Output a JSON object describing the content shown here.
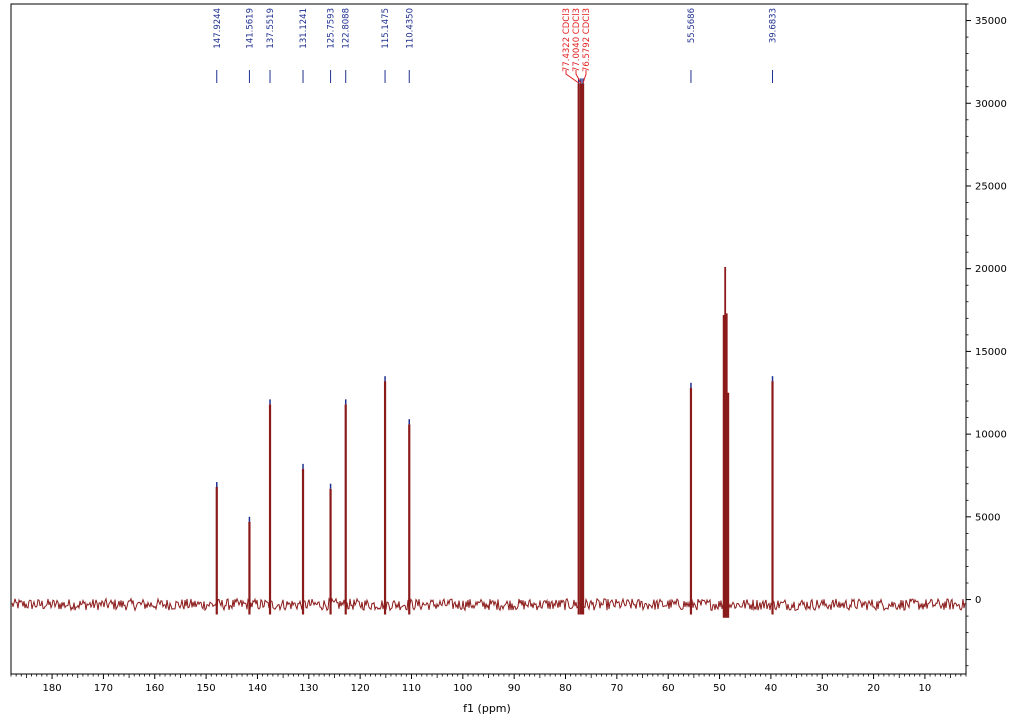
{
  "chart_data": {
    "type": "line",
    "title": "",
    "xlabel": "f1 (ppm)",
    "ylabel": "",
    "xlim": [
      188,
      2
    ],
    "ylim": [
      -4500,
      36000
    ],
    "x_reversed": true,
    "grid": false,
    "legend": "none",
    "colors": {
      "spectrum": "#8b1a1a",
      "peak_label": "#1f2f8f",
      "solvent_label": "#e02020",
      "axis": "#000000"
    },
    "x_ticks": [
      {
        "value": 180,
        "label": "180"
      },
      {
        "value": 170,
        "label": "170"
      },
      {
        "value": 160,
        "label": "160"
      },
      {
        "value": 150,
        "label": "150"
      },
      {
        "value": 140,
        "label": "140"
      },
      {
        "value": 130,
        "label": "130"
      },
      {
        "value": 120,
        "label": "120"
      },
      {
        "value": 110,
        "label": "110"
      },
      {
        "value": 100,
        "label": "100"
      },
      {
        "value": 90,
        "label": "90"
      },
      {
        "value": 80,
        "label": "80"
      },
      {
        "value": 70,
        "label": "70"
      },
      {
        "value": 60,
        "label": "60"
      },
      {
        "value": 50,
        "label": "50"
      },
      {
        "value": 40,
        "label": "40"
      },
      {
        "value": 30,
        "label": "30"
      },
      {
        "value": 20,
        "label": "20"
      },
      {
        "value": 10,
        "label": "10"
      }
    ],
    "y_ticks": [
      {
        "value": 35000,
        "label": "35000"
      },
      {
        "value": 30000,
        "label": "30000"
      },
      {
        "value": 25000,
        "label": "25000"
      },
      {
        "value": 20000,
        "label": "20000"
      },
      {
        "value": 15000,
        "label": "15000"
      },
      {
        "value": 10000,
        "label": "10000"
      },
      {
        "value": 5000,
        "label": "5000"
      },
      {
        "value": 0,
        "label": "0"
      }
    ],
    "peaks": [
      {
        "ppm": 147.9244,
        "intensity": 6800,
        "label": "147.9244"
      },
      {
        "ppm": 141.5619,
        "intensity": 4700,
        "label": "141.5619"
      },
      {
        "ppm": 137.5519,
        "intensity": 11800,
        "label": "137.5519"
      },
      {
        "ppm": 131.1241,
        "intensity": 7900,
        "label": "131.1241"
      },
      {
        "ppm": 125.7593,
        "intensity": 6700,
        "label": "125.7593"
      },
      {
        "ppm": 122.8088,
        "intensity": 11800,
        "label": "122.8088"
      },
      {
        "ppm": 115.1475,
        "intensity": 13200,
        "label": "115.1475"
      },
      {
        "ppm": 110.435,
        "intensity": 10600,
        "label": "110.4350"
      },
      {
        "ppm": 77.4322,
        "intensity": 31200,
        "label": "77.4322 CDCl3"
      },
      {
        "ppm": 77.004,
        "intensity": 31200,
        "label": "77.0040 CDCl3"
      },
      {
        "ppm": 76.5792,
        "intensity": 31200,
        "label": "76.5792 CDCl3"
      },
      {
        "ppm": 55.5686,
        "intensity": 12800,
        "label": "55.5686"
      },
      {
        "ppm": 39.6833,
        "intensity": 13200,
        "label": "39.6833"
      }
    ],
    "labeled_peak_count": 13,
    "solvent_peaks": [
      77.4322,
      77.004,
      76.5792
    ],
    "unlabeled_peaks": [
      {
        "ppm": 49.2,
        "intensity": 17200
      },
      {
        "ppm": 48.9,
        "intensity": 20100
      },
      {
        "ppm": 48.6,
        "intensity": 17300
      },
      {
        "ppm": 48.3,
        "intensity": 12500
      }
    ],
    "baseline": -300
  }
}
